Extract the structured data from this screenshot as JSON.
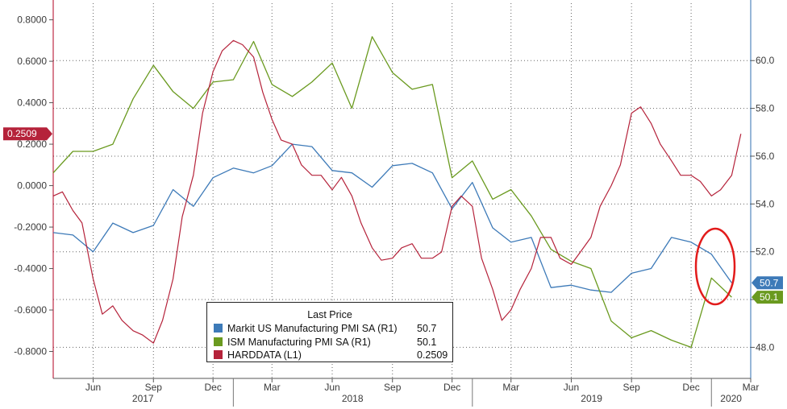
{
  "chart_data": {
    "type": "line",
    "x_range": [
      "2017-04",
      "2020-03"
    ],
    "axes": {
      "left": {
        "ylim": [
          -0.93,
          0.88
        ],
        "ticks": [
          "0.8000",
          "0.6000",
          "0.4000",
          "0.2000",
          "0.0000",
          "-0.2000",
          "-0.4000",
          "-0.6000",
          "-0.8000"
        ]
      },
      "right": {
        "ylim": [
          46.7,
          62.4
        ],
        "ticks": [
          "60.0",
          "58.0",
          "56.0",
          "54.0",
          "52.0",
          "50.0",
          "48.0"
        ]
      }
    },
    "x_tick_labels": [
      "Jun",
      "Sep",
      "Dec",
      "Mar",
      "Jun",
      "Sep",
      "Dec",
      "Mar",
      "Jun",
      "Sep",
      "Dec",
      "Mar"
    ],
    "year_labels": [
      "2017",
      "2018",
      "2019",
      "2020"
    ],
    "grid": true,
    "legend": {
      "title": "Last Price",
      "placement": "bottom-center",
      "entries": [
        {
          "name": "Markit US Manufacturing PMI SA  (R1)",
          "value": "50.7",
          "color": "#3d7ab8"
        },
        {
          "name": "ISM Manufacturing PMI SA  (R1)",
          "value": "50.1",
          "color": "#6a9a1f"
        },
        {
          "name": "HARDDATA  (L1)",
          "value": "0.2509",
          "color": "#b5223a"
        }
      ]
    },
    "last_value_badges": {
      "left": "0.2509",
      "markit": "50.7",
      "ism": "50.1"
    },
    "series": [
      {
        "name": "Markit US Manufacturing PMI SA  (R1)",
        "axis": "right",
        "color": "#3d7ab8",
        "x": [
          "2017-04-01",
          "2017-05-01",
          "2017-06-01",
          "2017-07-01",
          "2017-08-01",
          "2017-09-01",
          "2017-10-01",
          "2017-11-01",
          "2017-12-01",
          "2018-01-01",
          "2018-02-01",
          "2018-03-01",
          "2018-04-01",
          "2018-05-01",
          "2018-06-01",
          "2018-07-01",
          "2018-08-01",
          "2018-09-01",
          "2018-10-01",
          "2018-11-01",
          "2018-12-01",
          "2019-01-01",
          "2019-02-01",
          "2019-03-01",
          "2019-04-01",
          "2019-05-01",
          "2019-06-01",
          "2019-07-01",
          "2019-08-01",
          "2019-09-01",
          "2019-10-01",
          "2019-11-01",
          "2019-12-01",
          "2020-01-01",
          "2020-02-01"
        ],
        "values": [
          52.8,
          52.7,
          52.0,
          53.2,
          52.8,
          53.1,
          54.6,
          53.9,
          55.1,
          55.5,
          55.3,
          55.6,
          56.5,
          56.4,
          55.4,
          55.3,
          54.7,
          55.6,
          55.7,
          55.3,
          53.8,
          54.9,
          53.0,
          52.4,
          52.6,
          50.5,
          50.6,
          50.4,
          50.3,
          51.1,
          51.3,
          52.6,
          52.4,
          51.9,
          50.7
        ]
      },
      {
        "name": "ISM Manufacturing PMI SA  (R1)",
        "axis": "right",
        "color": "#6a9a1f",
        "x": [
          "2017-04-01",
          "2017-05-01",
          "2017-06-01",
          "2017-07-01",
          "2017-08-01",
          "2017-09-01",
          "2017-10-01",
          "2017-11-01",
          "2017-12-01",
          "2018-01-01",
          "2018-02-01",
          "2018-03-01",
          "2018-04-01",
          "2018-05-01",
          "2018-06-01",
          "2018-07-01",
          "2018-08-01",
          "2018-09-01",
          "2018-10-01",
          "2018-11-01",
          "2018-12-01",
          "2019-01-01",
          "2019-02-01",
          "2019-03-01",
          "2019-04-01",
          "2019-05-01",
          "2019-06-01",
          "2019-07-01",
          "2019-08-01",
          "2019-09-01",
          "2019-10-01",
          "2019-11-01",
          "2019-12-01",
          "2020-01-01",
          "2020-02-01"
        ],
        "values": [
          55.3,
          56.2,
          56.2,
          56.5,
          58.4,
          59.8,
          58.7,
          58.0,
          59.1,
          59.2,
          60.8,
          59.0,
          58.5,
          59.1,
          59.9,
          58.0,
          61.0,
          59.5,
          58.8,
          59.0,
          55.1,
          55.8,
          54.2,
          54.6,
          53.5,
          52.1,
          51.6,
          51.3,
          49.1,
          48.4,
          48.7,
          48.3,
          48.0,
          50.9,
          50.1
        ]
      },
      {
        "name": "HARDDATA  (L1)",
        "axis": "left",
        "color": "#b5223a",
        "x": [
          "2017-04-01",
          "2017-04-15",
          "2017-05-01",
          "2017-05-15",
          "2017-06-01",
          "2017-06-15",
          "2017-07-01",
          "2017-07-15",
          "2017-08-01",
          "2017-08-15",
          "2017-09-01",
          "2017-09-15",
          "2017-10-01",
          "2017-10-15",
          "2017-11-01",
          "2017-11-15",
          "2017-12-01",
          "2017-12-15",
          "2018-01-01",
          "2018-01-15",
          "2018-02-01",
          "2018-02-15",
          "2018-03-01",
          "2018-03-15",
          "2018-04-01",
          "2018-04-15",
          "2018-05-01",
          "2018-05-15",
          "2018-06-01",
          "2018-06-15",
          "2018-07-01",
          "2018-07-15",
          "2018-08-01",
          "2018-08-15",
          "2018-09-01",
          "2018-09-15",
          "2018-10-01",
          "2018-10-15",
          "2018-11-01",
          "2018-11-15",
          "2018-12-01",
          "2018-12-15",
          "2019-01-01",
          "2019-01-15",
          "2019-02-01",
          "2019-02-15",
          "2019-03-01",
          "2019-03-15",
          "2019-04-01",
          "2019-04-15",
          "2019-05-01",
          "2019-05-15",
          "2019-06-01",
          "2019-06-15",
          "2019-07-01",
          "2019-07-15",
          "2019-08-01",
          "2019-08-15",
          "2019-09-01",
          "2019-09-15",
          "2019-10-01",
          "2019-10-15",
          "2019-11-01",
          "2019-11-15",
          "2019-12-01",
          "2019-12-15",
          "2020-01-01",
          "2020-01-15",
          "2020-02-01",
          "2020-02-15"
        ],
        "values": [
          -0.05,
          -0.03,
          -0.12,
          -0.18,
          -0.45,
          -0.62,
          -0.58,
          -0.65,
          -0.7,
          -0.72,
          -0.76,
          -0.65,
          -0.45,
          -0.15,
          0.05,
          0.35,
          0.55,
          0.65,
          0.7,
          0.68,
          0.62,
          0.45,
          0.32,
          0.22,
          0.2,
          0.1,
          0.05,
          0.05,
          -0.02,
          0.04,
          -0.05,
          -0.18,
          -0.3,
          -0.36,
          -0.35,
          -0.3,
          -0.28,
          -0.35,
          -0.35,
          -0.32,
          -0.1,
          -0.05,
          -0.1,
          -0.35,
          -0.5,
          -0.65,
          -0.6,
          -0.5,
          -0.4,
          -0.25,
          -0.25,
          -0.35,
          -0.38,
          -0.32,
          -0.25,
          -0.1,
          0.0,
          0.1,
          0.35,
          0.38,
          0.3,
          0.2,
          0.12,
          0.05,
          0.05,
          0.02,
          -0.05,
          -0.02,
          0.05,
          0.25
        ]
      }
    ]
  }
}
